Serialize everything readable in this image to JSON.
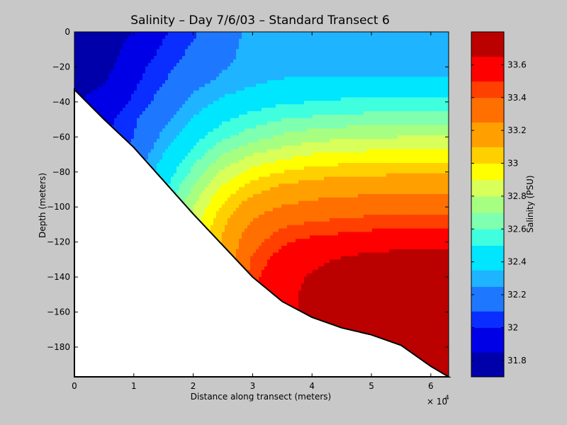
{
  "chart_data": {
    "type": "heatmap",
    "title": "Salinity – Day 7/6/03 – Standard Transect 6",
    "xlabel": "Distance along transect (meters)",
    "ylabel": "Depth (meters)",
    "x_exponent_label": "× 10",
    "x_exponent": "4",
    "xlim": [
      0,
      63000
    ],
    "ylim": [
      -197,
      0
    ],
    "x_ticks": [
      0,
      10000,
      20000,
      30000,
      40000,
      50000,
      60000
    ],
    "x_tick_labels": [
      "0",
      "1",
      "2",
      "3",
      "4",
      "5",
      "6"
    ],
    "y_ticks": [
      0,
      -20,
      -40,
      -60,
      -80,
      -100,
      -120,
      -140,
      -160,
      -180
    ],
    "y_tick_labels": [
      "0",
      "−20",
      "−40",
      "−60",
      "−80",
      "−100",
      "−120",
      "−140",
      "−160",
      "−180"
    ],
    "colorbar": {
      "label": "Salinity (PSU)",
      "range": [
        31.7,
        33.8
      ],
      "levels": [
        31.7,
        31.85,
        32.0,
        32.1,
        32.25,
        32.35,
        32.5,
        32.6,
        32.7,
        32.8,
        32.9,
        33.0,
        33.1,
        33.25,
        33.4,
        33.5,
        33.65,
        33.8
      ],
      "colors": [
        "#0000aa",
        "#0000e6",
        "#0a2eff",
        "#1e78ff",
        "#1fb4ff",
        "#00e6ff",
        "#40ffdf",
        "#7fffb0",
        "#a6ff80",
        "#d8ff5a",
        "#ffff00",
        "#ffd000",
        "#ffa000",
        "#ff7000",
        "#ff4000",
        "#ff0000",
        "#bb0000"
      ],
      "ticks": [
        31.8,
        32.0,
        32.2,
        32.4,
        32.6,
        32.8,
        33.0,
        33.2,
        33.4,
        33.6
      ],
      "tick_labels": [
        "31.8",
        "32",
        "32.2",
        "32.4",
        "32.6",
        "32.8",
        "33",
        "33.2",
        "33.4",
        "33.6"
      ]
    },
    "bottom_profile": {
      "x": [
        0,
        5000,
        10000,
        15000,
        20000,
        25000,
        30000,
        35000,
        40000,
        45000,
        50000,
        55000,
        60000,
        63000
      ],
      "depth": [
        -33,
        -50,
        -66,
        -85,
        -104,
        -122,
        -140,
        -154,
        -163,
        -169,
        -173,
        -179,
        -191,
        -197
      ]
    },
    "salinity_grid": {
      "x": [
        0,
        5000,
        10000,
        15000,
        20000,
        25000,
        30000,
        35000,
        40000,
        45000,
        50000,
        55000,
        60000,
        63000
      ],
      "depth": [
        0,
        -10,
        -20,
        -30,
        -40,
        -50,
        -60,
        -70,
        -80,
        -90,
        -100,
        -110,
        -120,
        -130,
        -140,
        -150,
        -160,
        -170,
        -180,
        -190,
        -197
      ],
      "values": [
        [
          31.78,
          31.78,
          31.85,
          31.98,
          32.08,
          32.2,
          32.28,
          32.28,
          32.28,
          32.28,
          32.28,
          32.28,
          32.28,
          32.28
        ],
        [
          31.78,
          31.78,
          31.9,
          32.02,
          32.12,
          32.22,
          32.28,
          32.28,
          32.28,
          32.28,
          32.28,
          32.28,
          32.28,
          32.28
        ],
        [
          31.78,
          31.8,
          31.95,
          32.06,
          32.16,
          32.24,
          32.28,
          32.29,
          32.29,
          32.29,
          32.29,
          32.29,
          32.29,
          32.29
        ],
        [
          31.8,
          31.85,
          31.98,
          32.1,
          32.22,
          32.28,
          32.34,
          32.38,
          32.4,
          32.4,
          32.4,
          32.4,
          32.4,
          32.4
        ],
        [
          31.85,
          31.9,
          32.02,
          32.16,
          32.28,
          32.38,
          32.44,
          32.48,
          32.5,
          32.52,
          32.52,
          32.52,
          32.52,
          32.52
        ],
        [
          31.9,
          31.95,
          32.08,
          32.22,
          32.36,
          32.48,
          32.55,
          32.6,
          32.62,
          32.64,
          32.65,
          32.65,
          32.65,
          32.65
        ],
        [
          32.0,
          32.0,
          32.1,
          32.28,
          32.45,
          32.58,
          32.66,
          32.72,
          32.76,
          32.78,
          32.79,
          32.8,
          32.8,
          32.8
        ],
        [
          32.1,
          32.1,
          32.15,
          32.35,
          32.54,
          32.7,
          32.8,
          32.86,
          32.9,
          32.92,
          32.93,
          32.94,
          32.94,
          32.94
        ],
        [
          32.2,
          32.2,
          32.2,
          32.42,
          32.63,
          32.82,
          32.94,
          33.0,
          33.04,
          33.06,
          33.07,
          33.08,
          33.08,
          33.08
        ],
        [
          32.3,
          32.3,
          32.3,
          32.48,
          32.72,
          32.93,
          33.06,
          33.14,
          33.18,
          33.2,
          33.21,
          33.22,
          33.22,
          33.22
        ],
        [
          32.4,
          32.4,
          32.4,
          32.52,
          32.8,
          33.02,
          33.18,
          33.26,
          33.3,
          33.32,
          33.34,
          33.35,
          33.35,
          33.35
        ],
        [
          32.5,
          32.5,
          32.5,
          32.55,
          32.86,
          33.08,
          33.28,
          33.38,
          33.42,
          33.44,
          33.46,
          33.47,
          33.47,
          33.47
        ],
        [
          32.6,
          32.6,
          32.6,
          32.6,
          32.88,
          33.12,
          33.36,
          33.48,
          33.54,
          33.56,
          33.58,
          33.59,
          33.59,
          33.59
        ],
        [
          32.7,
          32.7,
          32.7,
          32.7,
          32.9,
          33.12,
          33.42,
          33.56,
          33.63,
          33.66,
          33.7,
          33.72,
          33.72,
          33.72
        ],
        [
          32.8,
          32.8,
          32.8,
          32.8,
          32.9,
          33.1,
          33.46,
          33.62,
          33.66,
          33.69,
          33.75,
          33.78,
          33.78,
          33.78
        ],
        [
          32.9,
          32.9,
          32.9,
          32.9,
          32.9,
          33.1,
          33.48,
          33.64,
          33.66,
          33.7,
          33.76,
          33.78,
          33.78,
          33.78
        ],
        [
          33.0,
          33.0,
          33.0,
          33.0,
          33.0,
          33.1,
          33.48,
          33.64,
          33.66,
          33.7,
          33.76,
          33.78,
          33.78,
          33.78
        ],
        [
          33.0,
          33.0,
          33.0,
          33.0,
          33.0,
          33.1,
          33.48,
          33.64,
          33.66,
          33.7,
          33.76,
          33.78,
          33.78,
          33.78
        ],
        [
          33.0,
          33.0,
          33.0,
          33.0,
          33.0,
          33.1,
          33.48,
          33.64,
          33.66,
          33.7,
          33.76,
          33.78,
          33.78,
          33.78
        ],
        [
          33.0,
          33.0,
          33.0,
          33.0,
          33.0,
          33.1,
          33.48,
          33.64,
          33.66,
          33.7,
          33.76,
          33.78,
          33.78,
          33.78
        ],
        [
          33.0,
          33.0,
          33.0,
          33.0,
          33.0,
          33.1,
          33.48,
          33.64,
          33.66,
          33.7,
          33.76,
          33.78,
          33.78,
          33.78
        ]
      ]
    },
    "colors": {
      "seafloor": "#ffffff",
      "background": "#c8c8c8"
    },
    "grid": false
  }
}
